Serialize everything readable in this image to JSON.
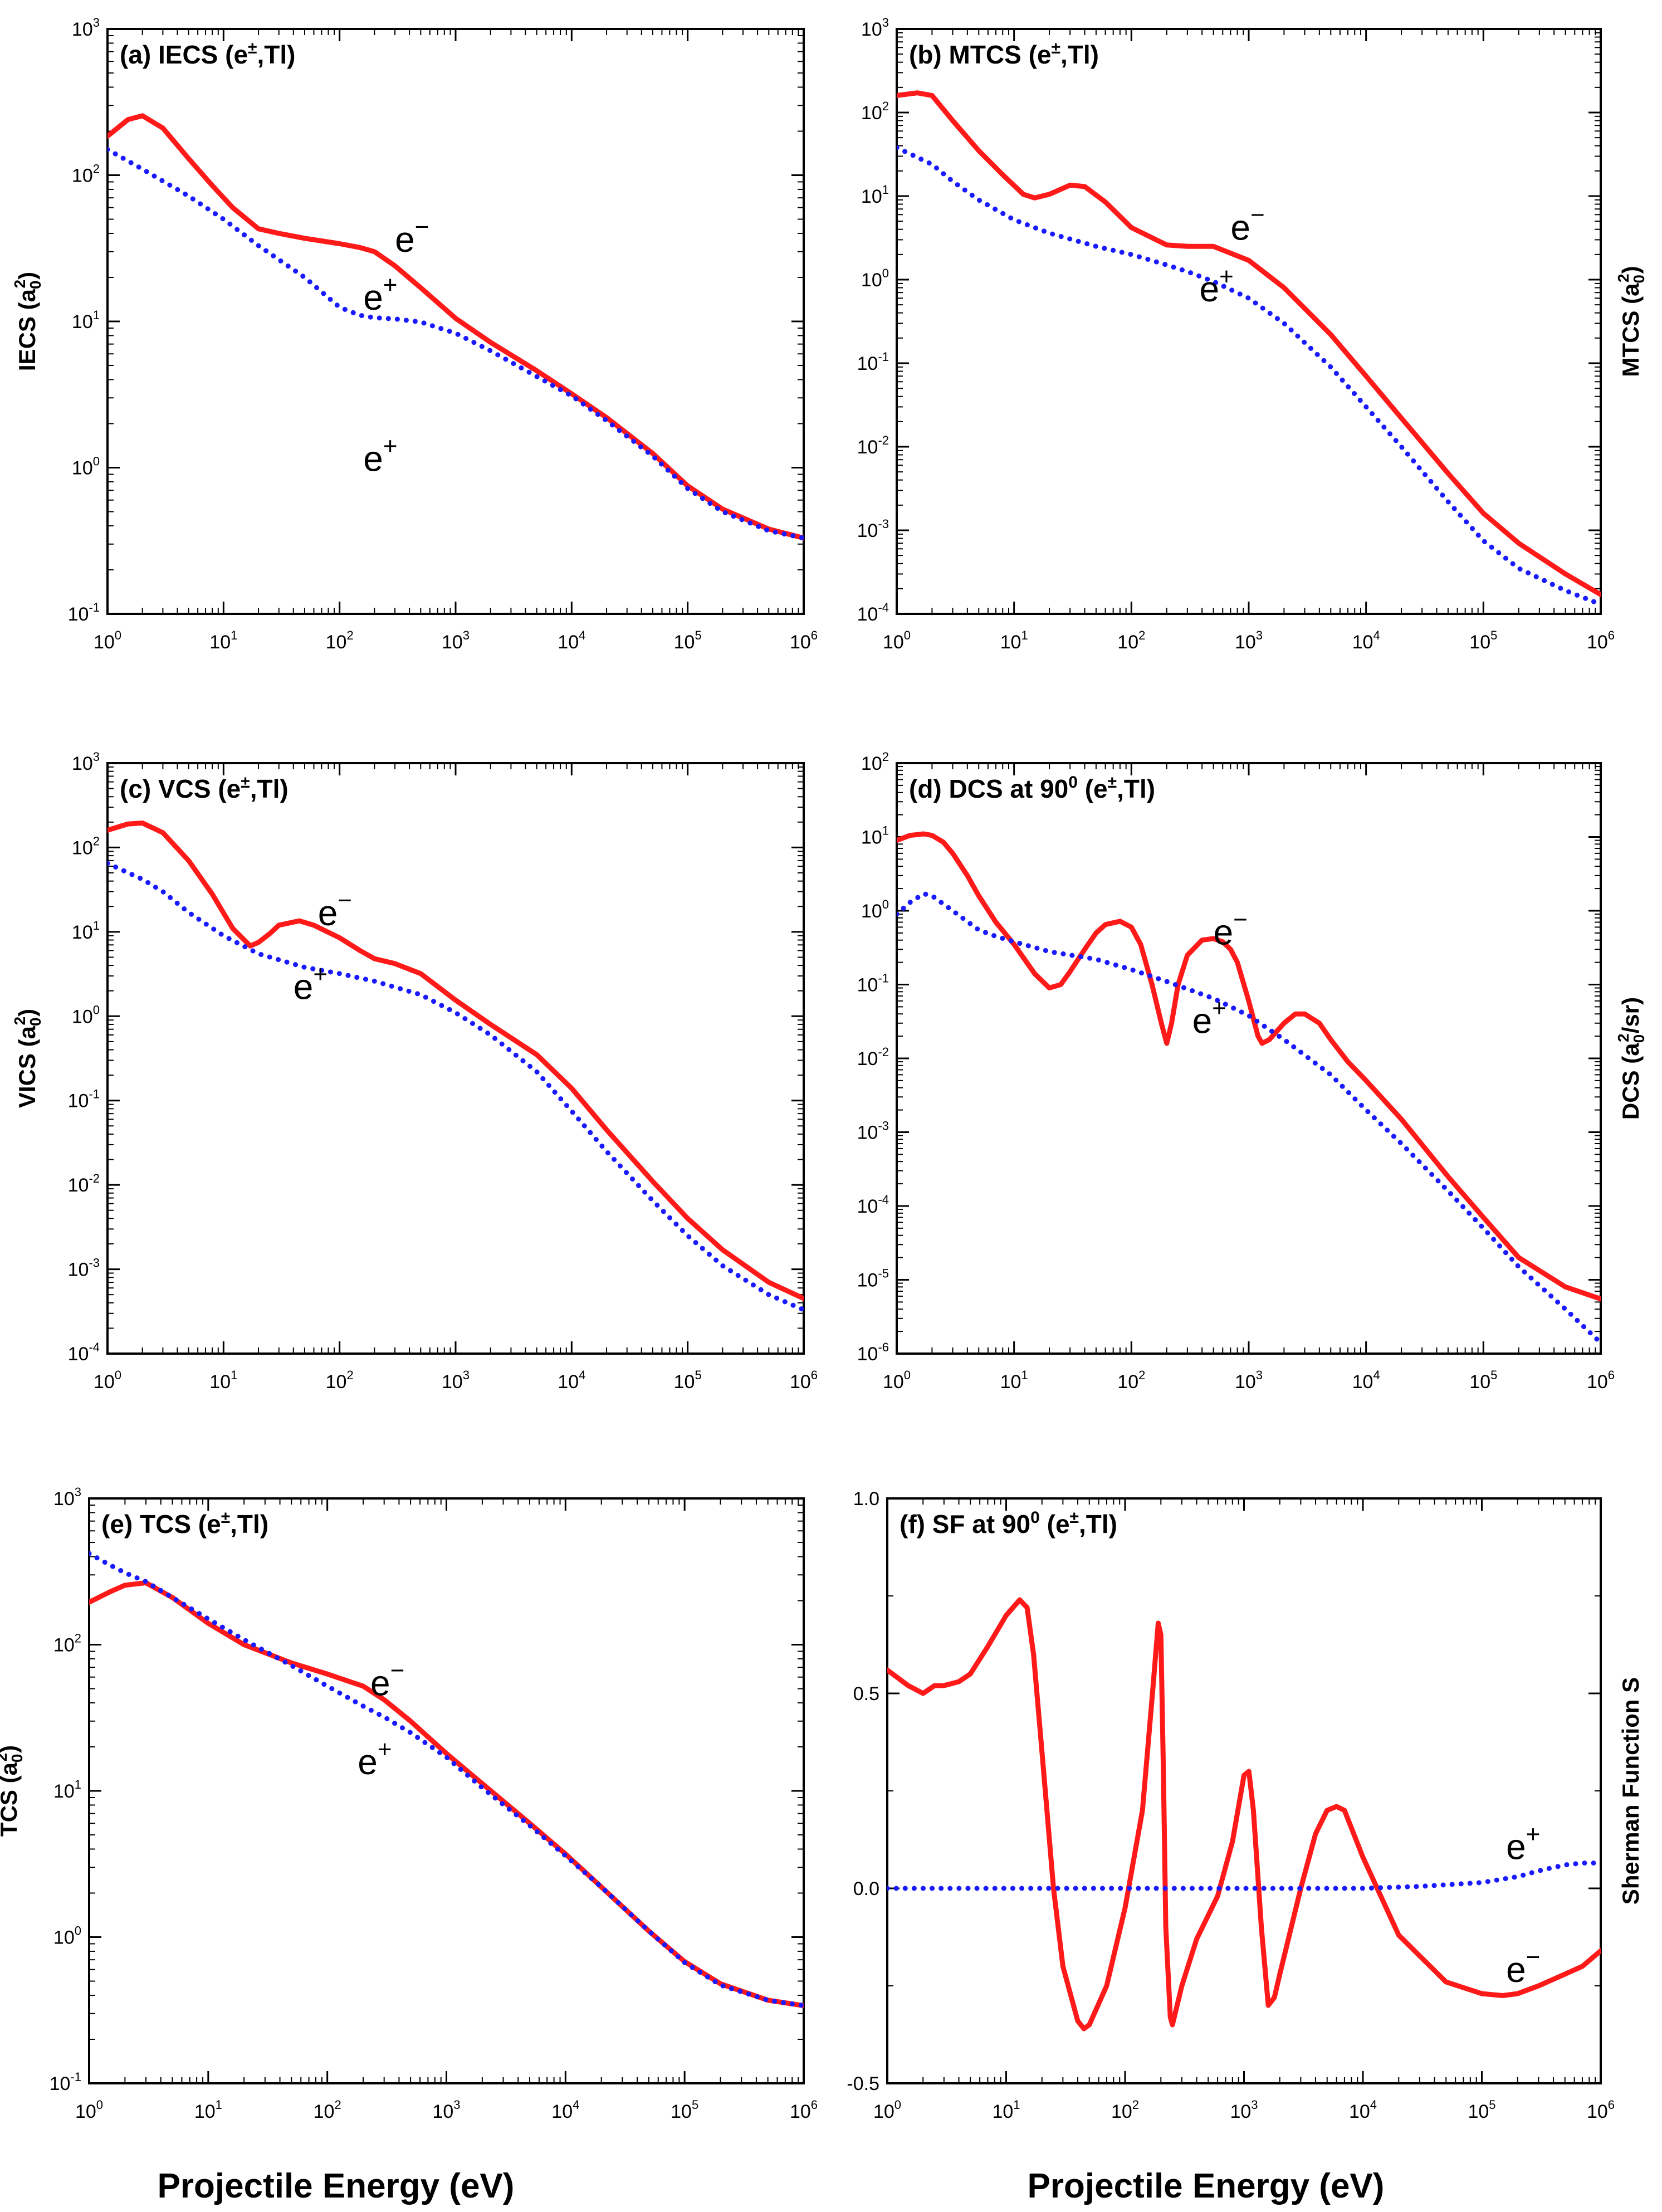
{
  "figure": {
    "xlabel": "Projectile Energy (eV)"
  },
  "styles": {
    "electron_color": "#ff1a1a",
    "positron_color": "#1a1aff"
  },
  "chart_data": [
    {
      "id": "a",
      "type": "line",
      "scale": "log",
      "title_main": "(a) IECS (e",
      "title_sup": "±",
      "title_tail": ",Tl)",
      "ylabel": "IECS (a",
      "ylabel_sub": "0",
      "ylabel_sup": "2",
      "ylabel_tail": ")",
      "xlim": [
        1,
        1000000
      ],
      "ylim": [
        0.1,
        1000
      ],
      "series": [
        {
          "name": "e−",
          "style": "solid",
          "x": [
            1,
            1.5,
            2,
            3,
            5,
            8,
            12,
            20,
            30,
            50,
            100,
            150,
            200,
            300,
            500,
            1000,
            2000,
            5000,
            10000,
            20000,
            50000,
            100000,
            200000,
            500000,
            1000000
          ],
          "y": [
            185,
            240,
            255,
            210,
            130,
            85,
            60,
            43,
            40,
            37,
            34,
            32,
            30,
            24,
            17,
            10.5,
            7.2,
            4.6,
            3.2,
            2.2,
            1.25,
            0.75,
            0.52,
            0.38,
            0.33
          ]
        },
        {
          "name": "e+",
          "style": "dotted",
          "x": [
            1,
            2,
            5,
            10,
            20,
            50,
            100,
            150,
            200,
            300,
            500,
            1000,
            2000,
            5000,
            10000,
            20000,
            50000,
            100000,
            200000,
            500000,
            1000000
          ],
          "y": [
            150,
            110,
            72,
            50,
            33,
            20,
            12.5,
            11,
            10.6,
            10.4,
            9.9,
            8.3,
            6.3,
            4.2,
            3.1,
            2.1,
            1.2,
            0.72,
            0.5,
            0.37,
            0.33
          ]
        }
      ],
      "annotations": [
        {
          "text": "e",
          "sup": "−",
          "x": 300,
          "y": 30
        },
        {
          "text": "e",
          "sup": "+",
          "x": 160,
          "y": 12
        },
        {
          "text": "e",
          "sup": "+",
          "x": 160,
          "y": 0.95
        }
      ]
    },
    {
      "id": "b",
      "type": "line",
      "scale": "log",
      "title_main": "(b) MTCS (e",
      "title_sup": "±",
      "title_tail": ",Tl)",
      "ylabel": "MTCS (a",
      "ylabel_sub": "0",
      "ylabel_sup": "2",
      "ylabel_tail": ")",
      "xlim": [
        1,
        1000000
      ],
      "ylim": [
        0.0001,
        1000
      ],
      "series": [
        {
          "name": "e−",
          "style": "solid",
          "x": [
            1,
            1.5,
            2,
            3,
            5,
            8,
            12,
            15,
            20,
            30,
            40,
            60,
            100,
            200,
            300,
            500,
            1000,
            2000,
            5000,
            10000,
            20000,
            50000,
            100000,
            200000,
            500000,
            1000000
          ],
          "y": [
            160,
            172,
            160,
            80,
            35,
            18,
            10.5,
            9.5,
            10.5,
            13.5,
            13,
            8.5,
            4.2,
            2.6,
            2.5,
            2.5,
            1.7,
            0.8,
            0.22,
            0.07,
            0.022,
            0.0048,
            0.0016,
            0.0007,
            0.0003,
            0.00017
          ]
        },
        {
          "name": "e+",
          "style": "dotted",
          "x": [
            1,
            2,
            3,
            5,
            10,
            20,
            50,
            100,
            200,
            300,
            500,
            1000,
            2000,
            5000,
            10000,
            20000,
            50000,
            100000,
            200000,
            500000,
            1000000
          ],
          "y": [
            38,
            24,
            15,
            9,
            5.2,
            3.6,
            2.5,
            2.0,
            1.5,
            1.25,
            0.95,
            0.6,
            0.3,
            0.09,
            0.03,
            0.01,
            0.0022,
            0.00075,
            0.00035,
            0.00019,
            0.00013
          ]
        }
      ],
      "annotations": [
        {
          "text": "e",
          "sup": "−",
          "x": 700,
          "y": 3.0
        },
        {
          "text": "e",
          "sup": "+",
          "x": 380,
          "y": 0.55
        }
      ]
    },
    {
      "id": "c",
      "type": "line",
      "scale": "log",
      "title_main": "(c) VCS (e",
      "title_sup": "±",
      "title_tail": ",Tl)",
      "ylabel": "VICS (a",
      "ylabel_sub": "0",
      "ylabel_sup": "2",
      "ylabel_tail": ")",
      "xlim": [
        1,
        1000000
      ],
      "ylim": [
        0.0001,
        1000
      ],
      "series": [
        {
          "name": "e−",
          "style": "solid",
          "x": [
            1,
            1.5,
            2,
            3,
            5,
            8,
            12,
            17,
            20,
            25,
            30,
            45,
            60,
            100,
            150,
            200,
            300,
            500,
            1000,
            2000,
            5000,
            10000,
            20000,
            50000,
            100000,
            200000,
            500000,
            1000000
          ],
          "y": [
            160,
            190,
            195,
            150,
            70,
            28,
            11,
            6.8,
            7.5,
            9.5,
            12,
            13.5,
            12,
            8.5,
            6,
            4.8,
            4.2,
            3.2,
            1.55,
            0.8,
            0.35,
            0.14,
            0.045,
            0.011,
            0.004,
            0.0017,
            0.0007,
            0.00045
          ]
        },
        {
          "name": "e+",
          "style": "dotted",
          "x": [
            1,
            2,
            3,
            5,
            10,
            20,
            50,
            100,
            200,
            500,
            1000,
            2000,
            5000,
            10000,
            20000,
            50000,
            100000,
            200000,
            500000,
            1000000
          ],
          "y": [
            65,
            42,
            30,
            17,
            9,
            5.5,
            3.8,
            3.2,
            2.6,
            1.8,
            1.1,
            0.6,
            0.22,
            0.075,
            0.025,
            0.0065,
            0.0025,
            0.0011,
            0.0005,
            0.00033
          ]
        }
      ],
      "annotations": [
        {
          "text": "e",
          "sup": "−",
          "x": 65,
          "y": 12
        },
        {
          "text": "e",
          "sup": "+",
          "x": 40,
          "y": 1.6
        }
      ]
    },
    {
      "id": "d",
      "type": "line",
      "scale": "log",
      "title_main": "(d) DCS at 90",
      "title_sup": "0",
      "title_tail": " (e",
      "title_sup2": "±",
      "title_tail2": ",Tl)",
      "ylabel": "DCS (a",
      "ylabel_sub": "0",
      "ylabel_sup": "2",
      "ylabel_tail": "/sr)",
      "xlim": [
        1,
        1000000
      ],
      "ylim": [
        1e-06,
        100
      ],
      "series": [
        {
          "name": "e−",
          "style": "solid",
          "x": [
            1,
            1.3,
            1.7,
            2,
            2.5,
            3,
            4,
            5,
            7,
            10,
            15,
            20,
            25,
            30,
            40,
            50,
            60,
            80,
            100,
            120,
            150,
            180,
            200,
            220,
            250,
            300,
            400,
            500,
            600,
            700,
            800,
            1000,
            1200,
            1300,
            1500,
            2000,
            2500,
            3000,
            4000,
            5000,
            7000,
            10000,
            20000,
            50000,
            100000,
            200000,
            500000,
            1000000
          ],
          "y": [
            9,
            10.5,
            11,
            10.5,
            8.5,
            6,
            3,
            1.6,
            0.7,
            0.35,
            0.14,
            0.09,
            0.1,
            0.15,
            0.3,
            0.5,
            0.65,
            0.72,
            0.6,
            0.35,
            0.1,
            0.03,
            0.016,
            0.03,
            0.1,
            0.25,
            0.4,
            0.42,
            0.38,
            0.3,
            0.2,
            0.06,
            0.02,
            0.016,
            0.018,
            0.03,
            0.04,
            0.04,
            0.03,
            0.018,
            0.009,
            0.005,
            0.0015,
            0.00025,
            7e-05,
            2e-05,
            8e-06,
            5.5e-06
          ]
        },
        {
          "name": "e+",
          "style": "dotted",
          "x": [
            1,
            1.3,
            1.7,
            2,
            3,
            5,
            7,
            10,
            20,
            50,
            100,
            200,
            500,
            1000,
            2000,
            5000,
            10000,
            20000,
            50000,
            100000,
            200000,
            500000,
            1000000
          ],
          "y": [
            0.9,
            1.3,
            1.7,
            1.6,
            1.0,
            0.55,
            0.45,
            0.38,
            0.28,
            0.22,
            0.16,
            0.11,
            0.065,
            0.038,
            0.018,
            0.006,
            0.002,
            0.0007,
            0.00016,
            5e-05,
            1.5e-05,
            4e-06,
            1.4e-06
          ]
        }
      ],
      "annotations": [
        {
          "text": "e",
          "sup": "−",
          "x": 500,
          "y": 0.35
        },
        {
          "text": "e",
          "sup": "+",
          "x": 330,
          "y": 0.022
        }
      ]
    },
    {
      "id": "e",
      "type": "line",
      "scale": "log",
      "title_main": "(e) TCS (e",
      "title_sup": "±",
      "title_tail": ",Tl)",
      "ylabel": "TCS (a",
      "ylabel_sub": "0",
      "ylabel_sup": "2",
      "ylabel_tail": ")",
      "xlim": [
        1,
        1000000
      ],
      "ylim": [
        0.1,
        1000
      ],
      "series": [
        {
          "name": "e−",
          "style": "solid",
          "x": [
            1,
            1.5,
            2,
            3,
            5,
            10,
            20,
            50,
            100,
            200,
            300,
            500,
            1000,
            2000,
            5000,
            10000,
            20000,
            50000,
            100000,
            200000,
            500000,
            1000000
          ],
          "y": [
            195,
            230,
            255,
            265,
            210,
            140,
            100,
            75,
            63,
            52,
            42,
            30,
            18,
            11.2,
            6,
            3.7,
            2.2,
            1.1,
            0.68,
            0.48,
            0.37,
            0.34
          ]
        },
        {
          "name": "e+",
          "style": "dotted",
          "x": [
            1,
            1.5,
            2,
            3,
            5,
            10,
            20,
            50,
            100,
            200,
            300,
            500,
            1000,
            2000,
            5000,
            10000,
            20000,
            50000,
            100000,
            200000,
            500000,
            1000000
          ],
          "y": [
            420,
            350,
            310,
            270,
            210,
            150,
            108,
            72,
            52,
            38,
            32,
            25,
            17,
            10.5,
            5.8,
            3.6,
            2.2,
            1.1,
            0.67,
            0.47,
            0.37,
            0.34
          ]
        }
      ],
      "annotations": [
        {
          "text": "e",
          "sup": "−",
          "x": 230,
          "y": 45
        },
        {
          "text": "e",
          "sup": "+",
          "x": 180,
          "y": 13
        }
      ]
    },
    {
      "id": "f",
      "type": "line",
      "scale": "semilogx",
      "title_main": "(f) SF at 90",
      "title_sup": "0",
      "title_tail": " (e",
      "title_sup2": "±",
      "title_tail2": ",Tl)",
      "ylabel": "Sherman Function S",
      "ylabel_sub": "",
      "ylabel_sup": "",
      "ylabel_tail": "",
      "xlim": [
        1,
        1000000
      ],
      "ylim": [
        -0.5,
        1.0
      ],
      "yticks": [
        "1.0",
        "0.5",
        "0.0",
        "-0.5"
      ],
      "series": [
        {
          "name": "e−",
          "style": "solid",
          "x": [
            1,
            1.5,
            2,
            2.5,
            3,
            4,
            5,
            7,
            10,
            13,
            15,
            17,
            20,
            25,
            30,
            40,
            45,
            50,
            70,
            100,
            140,
            170,
            190,
            200,
            210,
            220,
            240,
            250,
            300,
            400,
            600,
            800,
            1000,
            1100,
            1200,
            1400,
            1600,
            1800,
            2000,
            3000,
            4000,
            5000,
            6000,
            7000,
            10000,
            20000,
            50000,
            100000,
            150000,
            200000,
            300000,
            500000,
            700000,
            1000000
          ],
          "y": [
            0.56,
            0.52,
            0.5,
            0.52,
            0.52,
            0.53,
            0.55,
            0.62,
            0.7,
            0.74,
            0.72,
            0.6,
            0.35,
            0.0,
            -0.2,
            -0.34,
            -0.36,
            -0.35,
            -0.25,
            -0.05,
            0.2,
            0.5,
            0.68,
            0.65,
            0.3,
            -0.1,
            -0.33,
            -0.35,
            -0.25,
            -0.13,
            -0.02,
            0.12,
            0.29,
            0.3,
            0.2,
            -0.1,
            -0.3,
            -0.28,
            -0.22,
            0.0,
            0.14,
            0.2,
            0.21,
            0.2,
            0.08,
            -0.12,
            -0.24,
            -0.27,
            -0.275,
            -0.27,
            -0.25,
            -0.22,
            -0.2,
            -0.16
          ]
        },
        {
          "name": "e+",
          "style": "dotted",
          "x": [
            1,
            10,
            100,
            1000,
            10000,
            30000,
            100000,
            200000,
            300000,
            500000,
            700000,
            1000000
          ],
          "y": [
            0,
            0,
            0,
            0,
            0,
            0.005,
            0.015,
            0.03,
            0.045,
            0.06,
            0.065,
            0.065
          ]
        }
      ],
      "annotations": [
        {
          "text": "e",
          "sup": "+",
          "x": 160000,
          "y": 0.075
        },
        {
          "text": "e",
          "sup": "−",
          "x": 160000,
          "y": -0.24
        }
      ]
    }
  ]
}
